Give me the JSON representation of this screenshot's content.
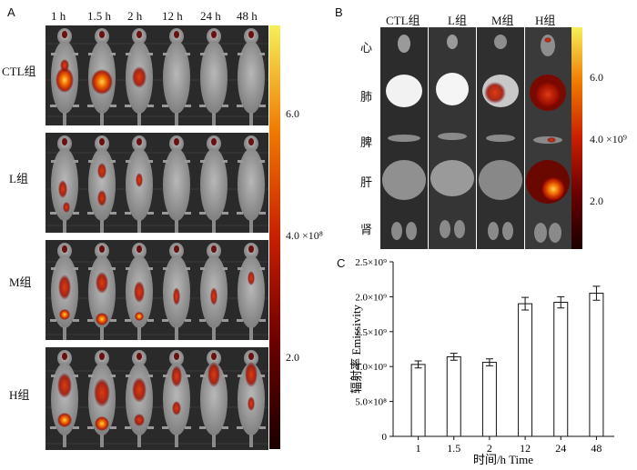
{
  "panel_a": {
    "letter": "A",
    "time_labels": [
      "1 h",
      "1.5 h",
      "2 h",
      "12 h",
      "24 h",
      "48 h"
    ],
    "group_labels": [
      "CTL组",
      "L组",
      "M组",
      "H组"
    ],
    "colorbar_ticks": [
      "6.0",
      "4.0 ×10⁸",
      "2.0"
    ]
  },
  "panel_b": {
    "letter": "B",
    "group_labels": [
      "CTL组",
      "L组",
      "M组",
      "H组"
    ],
    "organ_labels": [
      "心",
      "肺",
      "脾",
      "肝",
      "肾"
    ],
    "colorbar_ticks": [
      "6.0",
      "4.0 ×10⁹",
      "2.0"
    ]
  },
  "panel_c": {
    "letter": "C"
  },
  "chart_data": {
    "type": "bar",
    "categories": [
      "1",
      "1.5",
      "2",
      "12",
      "24",
      "48"
    ],
    "values": [
      1030000000.0,
      1140000000.0,
      1060000000.0,
      1900000000.0,
      1920000000.0,
      2050000000.0
    ],
    "errors": [
      50000000.0,
      50000000.0,
      50000000.0,
      90000000.0,
      80000000.0,
      100000000.0
    ],
    "ylim": [
      0,
      2500000000.0
    ],
    "ytick_values": [
      0,
      500000000.0,
      1000000000.0,
      1500000000.0,
      2000000000.0,
      2500000000.0
    ],
    "ytick_labels": [
      "0",
      "5.0×10⁸",
      "1.0×10⁹",
      "1.5×10⁹",
      "2.0×10⁹",
      "2.5×10⁹"
    ],
    "xlabel": "时间/h Time",
    "ylabel": "辐射率 Emissivity"
  }
}
